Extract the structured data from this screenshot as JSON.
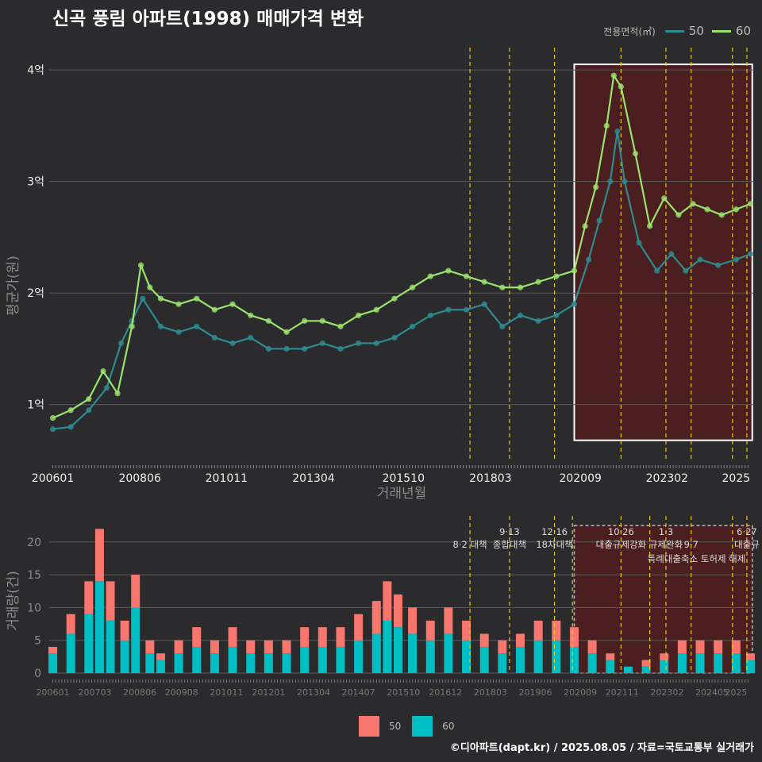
{
  "title": "신곡 풍림 아파트(1998) 매매가격 변화",
  "caption": "©디아파트(dapt.kr) / 2025.08.05 / 자료=국토교통부 실거래가",
  "legend_top": {
    "title": "전용면적(㎡)",
    "items": [
      {
        "label": "50",
        "color": "#2e8b91"
      },
      {
        "label": "60",
        "color": "#9be36d"
      }
    ]
  },
  "legend_bottom": {
    "items": [
      {
        "label": "50",
        "color": "#f8766d"
      },
      {
        "label": "60",
        "color": "#00bfc4"
      }
    ]
  },
  "colors": {
    "background": "#2b2b2d",
    "grid": "#5a5a5a",
    "line50": "#2e8b91",
    "line60": "#9be36d",
    "bar50": "#f8766d",
    "bar60": "#00bfc4",
    "policy": "#e6c619",
    "highlight_fill": "#5a1a1a"
  },
  "chart_data": [
    {
      "type": "line",
      "title": "신곡 풍림 아파트(1998) 매매가격 변화",
      "xlabel": "거래년월",
      "ylabel": "평균가(원)",
      "x_ticks": [
        "200601",
        "200806",
        "201011",
        "201304",
        "201510",
        "201803",
        "202009",
        "202302",
        "2025"
      ],
      "x_tick_years": [
        2006.0,
        2008.42,
        2010.83,
        2013.25,
        2015.75,
        2018.17,
        2020.67,
        2023.08,
        2025.0
      ],
      "y_ticks": [
        "1억",
        "2억",
        "3억",
        "4억"
      ],
      "y_tick_values": [
        1.0,
        2.0,
        3.0,
        4.0
      ],
      "ylim": [
        0.5,
        4.2
      ],
      "xlim": [
        2005.9,
        2025.5
      ],
      "highlight_range": [
        2020.5,
        2025.45
      ],
      "policy_lines": [
        2017.6,
        2018.7,
        2019.95,
        2021.8,
        2023.05,
        2023.75,
        2024.9,
        2025.3
      ],
      "series": [
        {
          "name": "50",
          "x": [
            2006.0,
            2006.5,
            2007.0,
            2007.5,
            2007.9,
            2008.2,
            2008.5,
            2009.0,
            2009.5,
            2010.0,
            2010.5,
            2011.0,
            2011.5,
            2012.0,
            2012.5,
            2013.0,
            2013.5,
            2014.0,
            2014.5,
            2015.0,
            2015.5,
            2016.0,
            2016.5,
            2017.0,
            2017.5,
            2018.0,
            2018.5,
            2019.0,
            2019.5,
            2020.0,
            2020.5,
            2020.9,
            2021.2,
            2021.5,
            2021.7,
            2021.9,
            2022.3,
            2022.8,
            2023.2,
            2023.6,
            2024.0,
            2024.5,
            2025.0,
            2025.4
          ],
          "y": [
            0.78,
            0.8,
            0.95,
            1.15,
            1.55,
            1.75,
            1.95,
            1.7,
            1.65,
            1.7,
            1.6,
            1.55,
            1.6,
            1.5,
            1.5,
            1.5,
            1.55,
            1.5,
            1.55,
            1.55,
            1.6,
            1.7,
            1.8,
            1.85,
            1.85,
            1.9,
            1.7,
            1.8,
            1.75,
            1.8,
            1.9,
            2.3,
            2.65,
            3.0,
            3.45,
            3.0,
            2.45,
            2.2,
            2.35,
            2.2,
            2.3,
            2.25,
            2.3,
            2.35
          ]
        },
        {
          "name": "60",
          "x": [
            2006.0,
            2006.5,
            2007.0,
            2007.4,
            2007.8,
            2008.2,
            2008.45,
            2008.7,
            2009.0,
            2009.5,
            2010.0,
            2010.5,
            2011.0,
            2011.5,
            2012.0,
            2012.5,
            2013.0,
            2013.5,
            2014.0,
            2014.5,
            2015.0,
            2015.5,
            2016.0,
            2016.5,
            2017.0,
            2017.5,
            2018.0,
            2018.5,
            2019.0,
            2019.5,
            2020.0,
            2020.5,
            2020.8,
            2021.1,
            2021.4,
            2021.6,
            2021.8,
            2022.2,
            2022.6,
            2023.0,
            2023.4,
            2023.8,
            2024.2,
            2024.6,
            2025.0,
            2025.4
          ],
          "y": [
            0.88,
            0.95,
            1.05,
            1.3,
            1.1,
            1.7,
            2.25,
            2.05,
            1.95,
            1.9,
            1.95,
            1.85,
            1.9,
            1.8,
            1.75,
            1.65,
            1.75,
            1.75,
            1.7,
            1.8,
            1.85,
            1.95,
            2.05,
            2.15,
            2.2,
            2.15,
            2.1,
            2.05,
            2.05,
            2.1,
            2.15,
            2.2,
            2.6,
            2.95,
            3.5,
            3.95,
            3.85,
            3.25,
            2.6,
            2.85,
            2.7,
            2.8,
            2.75,
            2.7,
            2.75,
            2.8
          ]
        }
      ]
    },
    {
      "type": "bar",
      "ylabel": "거래량(건)",
      "x_ticks": [
        "200601",
        "200703",
        "200806",
        "200908",
        "201011",
        "201201",
        "201304",
        "201407",
        "201510",
        "201612",
        "201803",
        "201906",
        "202009",
        "202111",
        "202302",
        "202405",
        "2025"
      ],
      "x_tick_years": [
        2006.0,
        2007.17,
        2008.42,
        2009.58,
        2010.83,
        2012.0,
        2013.25,
        2014.5,
        2015.75,
        2016.92,
        2018.17,
        2019.42,
        2020.67,
        2021.83,
        2023.08,
        2024.33,
        2025.0
      ],
      "y_ticks": [
        "0",
        "5",
        "10",
        "15",
        "20"
      ],
      "y_tick_values": [
        0,
        5,
        10,
        15,
        20
      ],
      "ylim": [
        0,
        23
      ],
      "highlight_range": [
        2020.5,
        2025.45
      ],
      "policy_lines": [
        2017.6,
        2018.7,
        2019.95,
        2020.45,
        2021.8,
        2022.6,
        2023.05,
        2023.75,
        2024.9,
        2025.3
      ],
      "annotations": [
        {
          "label": "8·2 대책",
          "x": 2017.6,
          "row": 2
        },
        {
          "label": "9·13",
          "x": 2018.7,
          "row": 1
        },
        {
          "label": "종합대책",
          "x": 2018.7,
          "row": 2
        },
        {
          "label": "12·16",
          "x": 2019.95,
          "row": 1
        },
        {
          "label": "18차대책",
          "x": 2019.95,
          "row": 2
        },
        {
          "label": "10·26",
          "x": 2021.8,
          "row": 1
        },
        {
          "label": "대출규제강화",
          "x": 2021.8,
          "row": 2
        },
        {
          "label": "1·3",
          "x": 2023.05,
          "row": 1
        },
        {
          "label": "규제완화",
          "x": 2023.05,
          "row": 2
        },
        {
          "label": "9·7",
          "x": 2023.75,
          "row": 2
        },
        {
          "label": "특례대출축소 토허제 해제",
          "x": 2023.9,
          "row": 3
        },
        {
          "label": "6·27",
          "x": 2025.3,
          "row": 1
        },
        {
          "label": "대출규",
          "x": 2025.3,
          "row": 2
        }
      ],
      "series": [
        {
          "name": "50",
          "x": [
            2006.0,
            2006.5,
            2007.0,
            2007.3,
            2007.6,
            2008.0,
            2008.3,
            2008.7,
            2009.0,
            2009.5,
            2010.0,
            2010.5,
            2011.0,
            2011.5,
            2012.0,
            2012.5,
            2013.0,
            2013.5,
            2014.0,
            2014.5,
            2015.0,
            2015.3,
            2015.6,
            2016.0,
            2016.5,
            2017.0,
            2017.5,
            2018.0,
            2018.5,
            2019.0,
            2019.5,
            2020.0,
            2020.5,
            2021.0,
            2021.5,
            2022.0,
            2022.5,
            2023.0,
            2023.5,
            2024.0,
            2024.5,
            2025.0,
            2025.4
          ],
          "values": [
            1,
            3,
            5,
            8,
            6,
            3,
            5,
            2,
            1,
            2,
            3,
            2,
            3,
            2,
            2,
            2,
            3,
            3,
            3,
            4,
            5,
            6,
            5,
            4,
            3,
            4,
            3,
            2,
            2,
            2,
            3,
            3,
            3,
            2,
            1,
            0,
            1,
            1,
            2,
            2,
            2,
            2,
            1
          ]
        },
        {
          "name": "60",
          "x": [
            2006.0,
            2006.5,
            2007.0,
            2007.3,
            2007.6,
            2008.0,
            2008.3,
            2008.7,
            2009.0,
            2009.5,
            2010.0,
            2010.5,
            2011.0,
            2011.5,
            2012.0,
            2012.5,
            2013.0,
            2013.5,
            2014.0,
            2014.5,
            2015.0,
            2015.3,
            2015.6,
            2016.0,
            2016.5,
            2017.0,
            2017.5,
            2018.0,
            2018.5,
            2019.0,
            2019.5,
            2020.0,
            2020.5,
            2021.0,
            2021.5,
            2022.0,
            2022.5,
            2023.0,
            2023.5,
            2024.0,
            2024.5,
            2025.0,
            2025.4
          ],
          "values": [
            3,
            6,
            9,
            14,
            8,
            5,
            10,
            3,
            2,
            3,
            4,
            3,
            4,
            3,
            3,
            3,
            4,
            4,
            4,
            5,
            6,
            8,
            7,
            6,
            5,
            6,
            5,
            4,
            3,
            4,
            5,
            5,
            4,
            3,
            2,
            1,
            1,
            2,
            3,
            3,
            3,
            3,
            2
          ]
        }
      ]
    }
  ]
}
